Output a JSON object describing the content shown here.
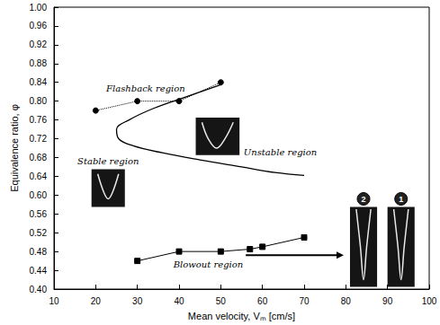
{
  "chart_data": {
    "type": "line",
    "x_label": "Mean velocity, Vₘ [cm/s]",
    "y_label": "Equivalence ratio, φ",
    "xlim": [
      10,
      100
    ],
    "xticks": [
      10,
      20,
      30,
      40,
      50,
      60,
      70,
      80,
      90,
      100
    ],
    "ylim": [
      0.4,
      1.0
    ],
    "yticks": [
      {
        "value": 0.4,
        "label": "0.40"
      },
      {
        "value": 0.44,
        "label": "0.44"
      },
      {
        "value": 0.48,
        "label": "0.48"
      },
      {
        "value": 0.52,
        "label": "0.52"
      },
      {
        "value": 0.56,
        "label": "0.56"
      },
      {
        "value": 0.6,
        "label": "0.60"
      },
      {
        "value": 0.64,
        "label": "0.64"
      },
      {
        "value": 0.68,
        "label": "0.68"
      },
      {
        "value": 0.72,
        "label": "0.72"
      },
      {
        "value": 0.76,
        "label": "0.76"
      },
      {
        "value": 0.8,
        "label": "0.80"
      },
      {
        "value": 0.84,
        "label": "0.84"
      },
      {
        "value": 0.88,
        "label": "0.88"
      },
      {
        "value": 0.92,
        "label": "0.92"
      },
      {
        "value": 0.96,
        "label": "0.96"
      },
      {
        "value": 1.0,
        "label": "1.00"
      }
    ],
    "grid": false,
    "series": [
      {
        "x": [
          20,
          30,
          40,
          50
        ],
        "values": [
          0.78,
          0.8,
          0.8,
          0.84
        ],
        "color": "#000000",
        "marker": "circle",
        "line_style": "dotted"
      },
      {
        "x": [
          50,
          42,
          34,
          28,
          25,
          25.5,
          29,
          36,
          45,
          55,
          63,
          70
        ],
        "values": [
          0.835,
          0.81,
          0.785,
          0.76,
          0.74,
          0.72,
          0.705,
          0.69,
          0.675,
          0.66,
          0.648,
          0.642
        ],
        "color": "#000000",
        "marker": "none",
        "line_style": "solid"
      },
      {
        "x": [
          30,
          40,
          50,
          57,
          60,
          70
        ],
        "values": [
          0.46,
          0.48,
          0.48,
          0.485,
          0.49,
          0.51
        ],
        "color": "#000000",
        "marker": "square",
        "line_style": "solid"
      }
    ],
    "annotations": [
      "Flashback region",
      "Unstable region",
      "Stable region",
      "Blowout region",
      "2",
      "1"
    ]
  }
}
